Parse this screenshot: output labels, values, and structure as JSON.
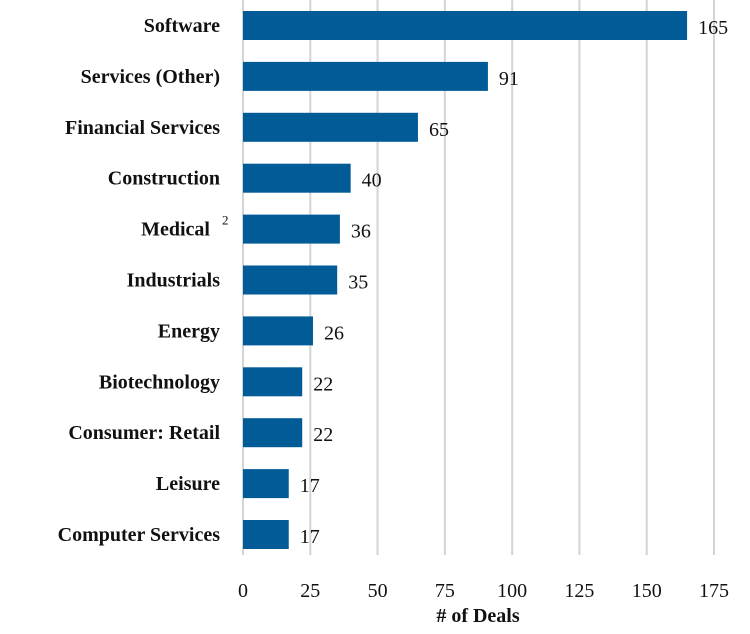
{
  "chart_data": {
    "type": "bar",
    "orientation": "horizontal",
    "title": "",
    "xlabel": "# of Deals",
    "ylabel": "",
    "xlim": [
      0,
      175
    ],
    "xticks": [
      0,
      25,
      50,
      75,
      100,
      125,
      150,
      175
    ],
    "grid": "vertical",
    "bar_color": "#005b96",
    "categories": [
      "Software",
      "Services (Other)",
      "Financial Services",
      "Construction",
      "Medical",
      "Industrials",
      "Energy",
      "Biotechnology",
      "Consumer: Retail",
      "Leisure",
      "Computer Services"
    ],
    "category_superscripts": [
      "",
      "",
      "",
      "",
      "2",
      "",
      "",
      "",
      "",
      "",
      ""
    ],
    "values": [
      165,
      91,
      65,
      40,
      36,
      35,
      26,
      22,
      22,
      17,
      17
    ],
    "data_labels": [
      "165",
      "91",
      "65",
      "40",
      "36",
      "35",
      "26",
      "22",
      "22",
      "17",
      "17"
    ]
  }
}
